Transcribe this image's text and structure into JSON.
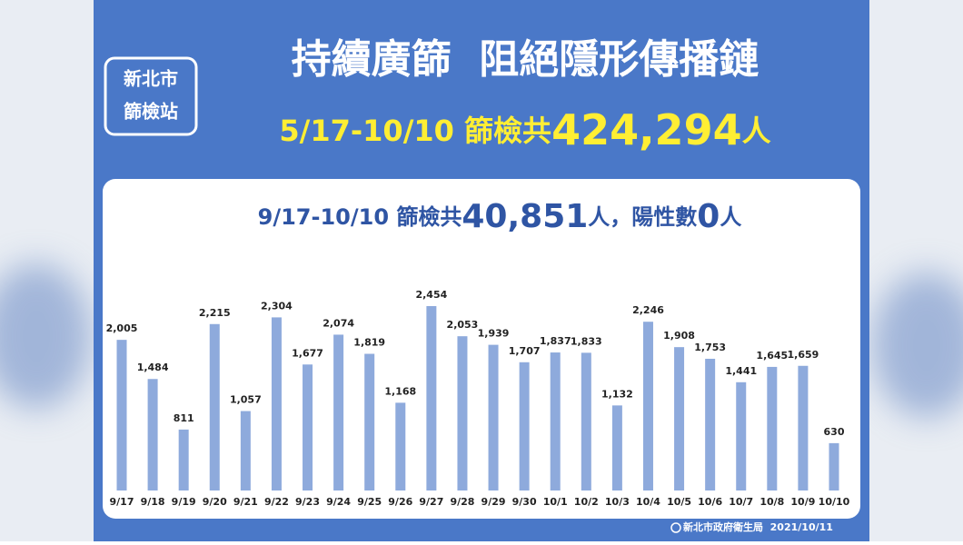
{
  "badge": [
    "新北市",
    "篩檢站"
  ],
  "headline": "持續廣篩  阻絕隱形傳播鏈",
  "subheadline": [
    "5/17-10/10 篩檢共",
    "424,294",
    "人"
  ],
  "chart_data": {
    "type": "bar",
    "title": [
      "9/17-10/10 篩檢共",
      "40,851",
      "人，陽性數",
      "0",
      "人"
    ],
    "categories": [
      "9/17",
      "9/18",
      "9/19",
      "9/20",
      "9/21",
      "9/22",
      "9/23",
      "9/24",
      "9/25",
      "9/26",
      "9/27",
      "9/28",
      "9/29",
      "9/30",
      "10/1",
      "10/2",
      "10/3",
      "10/4",
      "10/5",
      "10/6",
      "10/7",
      "10/8",
      "10/9",
      "10/10"
    ],
    "values": [
      2005,
      1484,
      811,
      2215,
      1057,
      2304,
      1677,
      2074,
      1819,
      1168,
      2454,
      2053,
      1939,
      1707,
      1837,
      1833,
      1132,
      2246,
      1908,
      1753,
      1441,
      1645,
      1659,
      630
    ],
    "value_labels": [
      "2,005",
      "1,484",
      "811",
      "2,215",
      "1,057",
      "2,304",
      "1,677",
      "2,074",
      "1,819",
      "1,168",
      "2,454",
      "2,053",
      "1,939",
      "1,707",
      "1,837",
      "1,833",
      "1,132",
      "2,246",
      "1,908",
      "1,753",
      "1,441",
      "1,645",
      "1,659",
      "630"
    ],
    "color": "#8eaadc"
  },
  "footer": "新北市政府衛生局  2021/10/11"
}
